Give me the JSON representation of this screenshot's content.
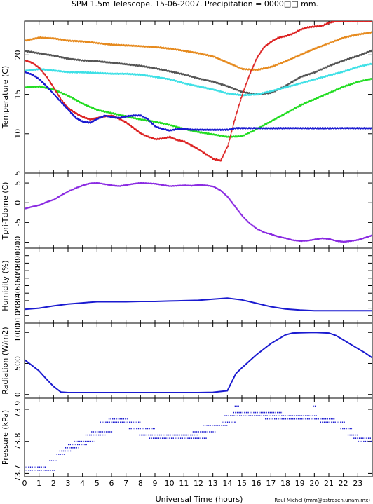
{
  "title": "SPM 1.5m Telescope. 15-06-2007. Precipitation = 0000□□ mm.",
  "xlabel": "Universal Time (hours)",
  "credit": "Raul Michel (rmm@astrosen.unam.mx)",
  "x_range": [
    0,
    24
  ],
  "x_ticks": [
    0,
    1,
    2,
    3,
    4,
    5,
    6,
    7,
    8,
    9,
    10,
    11,
    12,
    13,
    14,
    15,
    16,
    17,
    18,
    19,
    20,
    21,
    22,
    23
  ],
  "chart_data": [
    {
      "type": "scatter",
      "ylabel": "Temperature (C)",
      "ylim": [
        5,
        24.3
      ],
      "yticks": [
        5,
        10,
        15,
        20
      ],
      "series": [
        {
          "color": "#e68a1e",
          "x": [
            0,
            1,
            2,
            3,
            4,
            5,
            6,
            7,
            8,
            9,
            10,
            11,
            12,
            13,
            14,
            15,
            16,
            17,
            18,
            19,
            20,
            21,
            22,
            23,
            24
          ],
          "values": [
            21.8,
            22.2,
            22.1,
            21.8,
            21.7,
            21.5,
            21.3,
            21.2,
            21.1,
            21.0,
            20.8,
            20.5,
            20.2,
            19.8,
            19.0,
            18.2,
            18.1,
            18.5,
            19.2,
            20.0,
            20.8,
            21.5,
            22.2,
            22.6,
            22.9
          ]
        },
        {
          "color": "#555555",
          "x": [
            0,
            1,
            2,
            3,
            4,
            5,
            6,
            7,
            8,
            9,
            10,
            11,
            12,
            13,
            14,
            15,
            16,
            17,
            18,
            19,
            20,
            21,
            22,
            23,
            24
          ],
          "values": [
            20.5,
            20.2,
            19.9,
            19.5,
            19.3,
            19.2,
            19.0,
            18.8,
            18.6,
            18.3,
            17.9,
            17.5,
            17.0,
            16.6,
            16.0,
            15.3,
            15.0,
            15.2,
            16.1,
            17.2,
            17.8,
            18.6,
            19.3,
            19.9,
            20.6
          ]
        },
        {
          "color": "#3ee0e6",
          "x": [
            0,
            1,
            2,
            3,
            4,
            5,
            6,
            7,
            8,
            9,
            10,
            11,
            12,
            13,
            14,
            15,
            16,
            17,
            18,
            19,
            20,
            21,
            22,
            23,
            24
          ],
          "values": [
            18.0,
            18.2,
            18.0,
            17.8,
            17.8,
            17.7,
            17.6,
            17.6,
            17.5,
            17.2,
            16.9,
            16.4,
            16.0,
            15.6,
            15.1,
            14.9,
            15.0,
            15.4,
            15.9,
            16.4,
            16.9,
            17.4,
            17.9,
            18.5,
            18.9
          ]
        },
        {
          "color": "#22dd22",
          "x": [
            0,
            1,
            2,
            3,
            4,
            5,
            6,
            7,
            8,
            9,
            10,
            11,
            12,
            13,
            14,
            15,
            16,
            17,
            18,
            19,
            20,
            21,
            22,
            23,
            24
          ],
          "values": [
            15.9,
            16.0,
            15.6,
            14.8,
            13.8,
            13.0,
            12.6,
            12.2,
            11.8,
            11.5,
            11.1,
            10.6,
            10.2,
            9.9,
            9.6,
            9.7,
            10.6,
            11.6,
            12.6,
            13.6,
            14.4,
            15.2,
            16.0,
            16.6,
            17.0
          ]
        },
        {
          "color": "#dd2222",
          "x": [
            0,
            0.5,
            1,
            1.5,
            2,
            2.5,
            3,
            3.5,
            4,
            4.5,
            5,
            5.5,
            6,
            6.5,
            7,
            7.5,
            8,
            8.5,
            9,
            9.5,
            10,
            10.5,
            11,
            11.5,
            12,
            12.5,
            13,
            13.5,
            14,
            14.5,
            15,
            15.5,
            16,
            16.5,
            17,
            17.5,
            18,
            18.5,
            19,
            19.5,
            20,
            20.5,
            21,
            21.5,
            22,
            22.5,
            23,
            23.5,
            24
          ],
          "values": [
            19.3,
            19.0,
            18.3,
            17.2,
            15.8,
            14.3,
            13.2,
            12.6,
            12.1,
            11.8,
            12.0,
            12.2,
            12.3,
            11.9,
            11.4,
            10.7,
            10.0,
            9.6,
            9.3,
            9.4,
            9.6,
            9.2,
            9.0,
            8.5,
            8.0,
            7.4,
            6.8,
            6.6,
            8.5,
            12.0,
            15.0,
            17.5,
            19.6,
            21.0,
            21.7,
            22.2,
            22.4,
            22.7,
            23.2,
            23.5,
            23.6,
            23.7,
            24.1,
            24.3,
            24.3,
            24.3,
            24.3,
            24.3,
            24.3
          ]
        },
        {
          "color": "#1a1ad0",
          "x": [
            0,
            0.5,
            1,
            1.5,
            2,
            2.5,
            3,
            3.5,
            4,
            4.5,
            5,
            5.5,
            6,
            6.5,
            7,
            7.5,
            8,
            8.5,
            9,
            9.5,
            10,
            10.5,
            11,
            11.5,
            12,
            12.5,
            13,
            13.5,
            14,
            14.5,
            15,
            15.5,
            16,
            17,
            18,
            19,
            20,
            21,
            22,
            23,
            24
          ],
          "values": [
            17.8,
            17.5,
            16.9,
            16.0,
            15.0,
            14.0,
            13.0,
            12.0,
            11.5,
            11.4,
            11.9,
            12.3,
            12.1,
            12.0,
            12.2,
            12.3,
            12.3,
            11.8,
            10.9,
            10.6,
            10.4,
            10.6,
            10.6,
            10.5,
            10.5,
            10.5,
            10.5,
            10.5,
            10.5,
            10.7,
            10.7,
            10.7,
            10.7,
            10.7,
            10.7,
            10.7,
            10.7,
            10.7,
            10.7,
            10.7,
            10.7
          ]
        }
      ]
    },
    {
      "type": "scatter",
      "ylabel": "Tpri-Tdome (C)",
      "ylim": [
        -11.5,
        7.5
      ],
      "yticks": [
        -10,
        -5,
        0,
        5
      ],
      "series": [
        {
          "color": "#8a2be2",
          "x": [
            0,
            0.5,
            1,
            1.5,
            2,
            2.5,
            3,
            3.5,
            4,
            4.5,
            5,
            5.5,
            6,
            6.5,
            7,
            7.5,
            8,
            8.5,
            9,
            9.5,
            10,
            10.5,
            11,
            11.5,
            12,
            12.5,
            13,
            13.5,
            14,
            14.5,
            15,
            15.5,
            16,
            16.5,
            17,
            17.5,
            18,
            18.5,
            19,
            19.5,
            20,
            20.5,
            21,
            21.5,
            22,
            22.5,
            23,
            23.5,
            24
          ],
          "values": [
            -1.5,
            -1.0,
            -0.6,
            0.2,
            0.8,
            1.9,
            2.9,
            3.7,
            4.4,
            4.9,
            5.0,
            4.7,
            4.4,
            4.2,
            4.5,
            4.8,
            5.0,
            4.9,
            4.8,
            4.5,
            4.2,
            4.3,
            4.4,
            4.3,
            4.5,
            4.4,
            4.1,
            3.1,
            1.4,
            -1.0,
            -3.4,
            -5.2,
            -6.6,
            -7.5,
            -8.0,
            -8.6,
            -9.0,
            -9.5,
            -9.7,
            -9.6,
            -9.3,
            -9.0,
            -9.2,
            -9.7,
            -9.9,
            -9.7,
            -9.4,
            -8.8,
            -8.2
          ]
        }
      ]
    },
    {
      "type": "line",
      "ylabel": "Humidity (%)",
      "ylim": [
        0,
        100
      ],
      "yticks": [
        0,
        10,
        20,
        30,
        40,
        50,
        60,
        70,
        80,
        90,
        100
      ],
      "series": [
        {
          "color": "#1a1ad0",
          "x": [
            0,
            1,
            2,
            3,
            4,
            5,
            6,
            7,
            8,
            9,
            10,
            11,
            12,
            13,
            14,
            15,
            16,
            17,
            18,
            19,
            20,
            21,
            22,
            23,
            24
          ],
          "values": [
            18.5,
            20,
            23,
            25.5,
            27,
            28.5,
            28.5,
            28.5,
            29,
            29,
            29.5,
            30,
            30.5,
            32,
            33.5,
            31,
            26.5,
            22,
            19,
            17.5,
            16.5,
            16.5,
            16.5,
            16.5,
            16.5
          ]
        }
      ]
    },
    {
      "type": "line",
      "ylabel": "Radiation (W/m2)",
      "ylim": [
        -60,
        1150
      ],
      "yticks": [
        0,
        500,
        1000
      ],
      "series": [
        {
          "color": "#1a1ad0",
          "x": [
            0,
            0.5,
            1,
            1.5,
            2,
            2.5,
            3,
            4,
            5,
            6,
            7,
            8,
            9,
            10,
            11,
            12,
            13,
            14,
            14.4,
            14.6,
            15,
            16,
            17,
            18,
            18.5,
            19,
            20,
            21,
            21.5,
            22,
            22.5,
            23,
            23.5,
            24
          ],
          "values": [
            560,
            470,
            380,
            250,
            130,
            40,
            30,
            30,
            30,
            30,
            30,
            30,
            30,
            30,
            30,
            30,
            35,
            60,
            250,
            340,
            430,
            640,
            820,
            960,
            990,
            995,
            1000,
            990,
            950,
            880,
            810,
            740,
            670,
            590
          ]
        }
      ]
    },
    {
      "type": "scatter",
      "ylabel": "Pressure (kPa)",
      "ylim": [
        73.69,
        73.935
      ],
      "yticks": [
        73.7,
        73.8,
        73.9
      ],
      "series": [
        {
          "color": "#1a1ad0",
          "segments": [
            {
              "x0": 0.0,
              "x1": 1.5,
              "y": 73.72
            },
            {
              "x0": 0.0,
              "x1": 2.1,
              "y": 73.71
            },
            {
              "x0": 1.7,
              "x1": 2.3,
              "y": 73.74
            },
            {
              "x0": 2.2,
              "x1": 2.8,
              "y": 73.76
            },
            {
              "x0": 2.4,
              "x1": 3.2,
              "y": 73.77
            },
            {
              "x0": 2.8,
              "x1": 3.7,
              "y": 73.78
            },
            {
              "x0": 3.0,
              "x1": 4.3,
              "y": 73.79
            },
            {
              "x0": 3.4,
              "x1": 4.8,
              "y": 73.8
            },
            {
              "x0": 4.2,
              "x1": 5.6,
              "y": 73.82
            },
            {
              "x0": 4.6,
              "x1": 6.1,
              "y": 73.83
            },
            {
              "x0": 5.2,
              "x1": 8.0,
              "y": 73.86
            },
            {
              "x0": 5.8,
              "x1": 7.1,
              "y": 73.87
            },
            {
              "x0": 7.2,
              "x1": 9.0,
              "y": 73.84
            },
            {
              "x0": 7.9,
              "x1": 12.0,
              "y": 73.82
            },
            {
              "x0": 8.6,
              "x1": 12.6,
              "y": 73.81
            },
            {
              "x0": 11.6,
              "x1": 13.2,
              "y": 73.83
            },
            {
              "x0": 12.3,
              "x1": 14.0,
              "y": 73.85
            },
            {
              "x0": 13.6,
              "x1": 14.6,
              "y": 73.86
            },
            {
              "x0": 13.8,
              "x1": 15.2,
              "y": 73.88
            },
            {
              "x0": 14.4,
              "x1": 17.8,
              "y": 73.89
            },
            {
              "x0": 15.2,
              "x1": 20.2,
              "y": 73.88
            },
            {
              "x0": 16.6,
              "x1": 21.4,
              "y": 73.87
            },
            {
              "x0": 20.4,
              "x1": 22.2,
              "y": 73.86
            },
            {
              "x0": 21.8,
              "x1": 22.6,
              "y": 73.84
            },
            {
              "x0": 22.3,
              "x1": 23.0,
              "y": 73.82
            },
            {
              "x0": 22.7,
              "x1": 24.0,
              "y": 73.81
            },
            {
              "x0": 23.0,
              "x1": 24.0,
              "y": 73.8
            },
            {
              "x0": 14.5,
              "x1": 14.8,
              "y": 73.91
            },
            {
              "x0": 19.9,
              "x1": 20.1,
              "y": 73.91
            }
          ]
        }
      ]
    }
  ]
}
